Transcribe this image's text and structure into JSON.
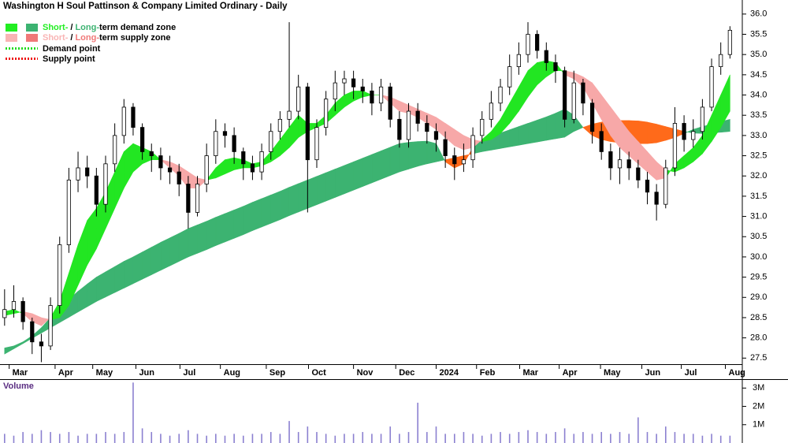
{
  "chart_data": {
    "type": "candlestick",
    "title": "Washington H Soul Pattinson & Company Limited Ordinary - Daily",
    "open": [
      28.5,
      28.7,
      28.9,
      28.4,
      27.9,
      27.8,
      28.8,
      30.3,
      31.9,
      32.2,
      32.0,
      31.3,
      32.3,
      33.0,
      33.7,
      33.2,
      32.6,
      32.5,
      32.2,
      32.1,
      31.8,
      31.1,
      31.8,
      32.5,
      33.1,
      33.0,
      32.6,
      32.3,
      32.1,
      32.6,
      33.1,
      33.4,
      33.6,
      34.2,
      32.4,
      33.2,
      33.9,
      34.3,
      34.4,
      34.2,
      34.1,
      33.8,
      34.2,
      33.4,
      32.9,
      33.6,
      33.3,
      33.1,
      32.9,
      32.5,
      32.3,
      32.4,
      33.0,
      33.4,
      33.8,
      34.2,
      34.7,
      35.0,
      35.5,
      35.1,
      34.8,
      34.6,
      33.4,
      34.3,
      33.8,
      33.1,
      32.6,
      32.2,
      32.4,
      32.2,
      31.9,
      31.6,
      31.3,
      32.2,
      33.3,
      32.9,
      33.1,
      33.7,
      34.7,
      35.0
    ],
    "high": [
      29.2,
      29.3,
      29.0,
      28.5,
      28.1,
      29.0,
      30.5,
      32.2,
      32.6,
      32.5,
      32.2,
      32.5,
      33.3,
      33.9,
      33.8,
      33.3,
      32.8,
      32.7,
      32.5,
      32.3,
      32.0,
      32.0,
      32.8,
      33.4,
      33.3,
      33.2,
      32.7,
      32.5,
      32.8,
      33.3,
      33.6,
      35.8,
      34.5,
      34.3,
      33.4,
      34.1,
      34.6,
      34.6,
      34.6,
      34.4,
      34.3,
      34.4,
      34.3,
      33.6,
      33.8,
      33.8,
      33.5,
      33.3,
      33.1,
      32.7,
      32.8,
      33.2,
      33.6,
      34.1,
      34.4,
      35.0,
      35.3,
      35.8,
      35.6,
      35.3,
      35.0,
      34.7,
      34.6,
      34.4,
      33.9,
      33.3,
      32.8,
      32.7,
      32.6,
      32.4,
      32.1,
      31.8,
      32.4,
      33.7,
      33.5,
      33.4,
      33.9,
      34.9,
      35.3,
      35.7
    ],
    "low": [
      28.3,
      28.5,
      28.2,
      27.6,
      27.4,
      27.7,
      28.6,
      30.1,
      31.6,
      31.7,
      31.0,
      31.1,
      32.1,
      32.8,
      33.0,
      32.4,
      32.1,
      31.9,
      31.8,
      31.5,
      30.7,
      31.0,
      31.6,
      32.3,
      32.7,
      32.3,
      31.9,
      31.9,
      31.9,
      32.4,
      32.9,
      33.2,
      33.4,
      31.1,
      32.2,
      33.0,
      33.6,
      34.0,
      33.9,
      33.8,
      33.5,
      33.6,
      33.2,
      32.7,
      32.7,
      33.1,
      32.8,
      32.6,
      32.2,
      31.9,
      32.1,
      32.2,
      32.8,
      33.2,
      33.6,
      34.0,
      34.5,
      34.8,
      34.9,
      34.6,
      34.3,
      33.2,
      33.3,
      33.5,
      32.8,
      32.4,
      31.9,
      31.8,
      31.9,
      31.7,
      31.3,
      30.9,
      31.2,
      32.0,
      32.6,
      32.7,
      32.9,
      33.6,
      34.5,
      34.9
    ],
    "close": [
      28.7,
      28.9,
      28.4,
      27.9,
      27.8,
      28.8,
      30.3,
      31.9,
      32.2,
      32.0,
      31.3,
      32.3,
      33.0,
      33.7,
      33.2,
      32.6,
      32.5,
      32.2,
      32.1,
      31.8,
      31.1,
      31.8,
      32.5,
      33.1,
      33.0,
      32.6,
      32.3,
      32.1,
      32.6,
      33.1,
      33.4,
      33.6,
      34.2,
      32.4,
      33.2,
      33.9,
      34.3,
      34.4,
      34.2,
      34.1,
      33.8,
      34.2,
      33.4,
      32.9,
      33.6,
      33.3,
      33.1,
      32.9,
      32.5,
      32.3,
      32.4,
      33.0,
      33.4,
      33.8,
      34.2,
      34.7,
      35.0,
      35.5,
      35.1,
      34.8,
      34.6,
      33.4,
      34.3,
      33.8,
      33.1,
      32.6,
      32.2,
      32.4,
      32.2,
      31.9,
      31.6,
      31.3,
      32.2,
      33.3,
      32.9,
      33.1,
      33.7,
      34.7,
      35.0,
      35.6
    ],
    "up_color": "#ffffff",
    "down_color": "#000000",
    "wick_color": "#000000",
    "xlim": [
      -0.5,
      80
    ],
    "xticks": [
      {
        "value": 0.5,
        "label": "Mar"
      },
      {
        "value": 5.5,
        "label": "Apr"
      },
      {
        "value": 9.6,
        "label": "May"
      },
      {
        "value": 14.3,
        "label": "Jun"
      },
      {
        "value": 19.1,
        "label": "Jul"
      },
      {
        "value": 23.5,
        "label": "Aug"
      },
      {
        "value": 28.5,
        "label": "Sep"
      },
      {
        "value": 33.1,
        "label": "Oct"
      },
      {
        "value": 38.0,
        "label": "Nov"
      },
      {
        "value": 42.6,
        "label": "Dec"
      },
      {
        "value": 47.0,
        "label": "2024"
      },
      {
        "value": 51.4,
        "label": "Feb"
      },
      {
        "value": 56.1,
        "label": "Mar"
      },
      {
        "value": 60.4,
        "label": "Apr"
      },
      {
        "value": 64.9,
        "label": "May"
      },
      {
        "value": 69.4,
        "label": "Jun"
      },
      {
        "value": 73.7,
        "label": "Jul"
      },
      {
        "value": 78.5,
        "label": "Aug"
      }
    ],
    "ylim": [
      27.35,
      36.25
    ],
    "yticks": [
      27.5,
      {
        "value": 28,
        "label": "28.0"
      },
      28.5,
      {
        "value": 29,
        "label": "29.0"
      },
      29.5,
      {
        "value": 30,
        "label": "30.0"
      },
      30.5,
      {
        "value": 31,
        "label": "31.0"
      },
      31.5,
      {
        "value": 32,
        "label": "32.0"
      },
      32.5,
      {
        "value": 33,
        "label": "33.0"
      },
      33.5,
      {
        "value": 34,
        "label": "34.0"
      },
      34.5,
      {
        "value": 35,
        "label": "35.0"
      },
      35.5,
      {
        "value": 36,
        "label": "36.0"
      }
    ],
    "grid": false,
    "long_zone": {
      "demand_color": "#3cb371",
      "supply_color": "#ff6a1a",
      "fast": [
        27.75,
        27.8,
        27.9,
        28.05,
        28.25,
        28.5,
        28.75,
        28.95,
        29.15,
        29.33,
        29.5,
        29.63,
        29.76,
        29.89,
        30.0,
        30.12,
        30.24,
        30.36,
        30.47,
        30.58,
        30.7,
        30.79,
        30.88,
        30.98,
        31.07,
        31.16,
        31.25,
        31.35,
        31.44,
        31.53,
        31.62,
        31.72,
        31.81,
        31.9,
        31.99,
        32.08,
        32.17,
        32.26,
        32.35,
        32.44,
        32.53,
        32.62,
        32.71,
        32.8,
        32.83,
        32.85,
        32.86,
        32.8,
        32.35,
        32.2,
        32.3,
        32.7,
        32.9,
        32.98,
        33.06,
        33.14,
        33.22,
        33.3,
        33.38,
        33.46,
        33.55,
        33.65,
        33.5,
        33.2,
        33.0,
        32.9,
        32.85,
        32.82,
        32.8,
        32.8,
        32.8,
        32.82,
        32.88,
        32.95,
        33.05,
        33.15,
        33.22,
        33.28,
        33.34,
        33.4
      ],
      "slow": [
        27.6,
        27.73,
        27.86,
        27.99,
        28.12,
        28.25,
        28.38,
        28.51,
        28.64,
        28.77,
        28.9,
        29.01,
        29.12,
        29.23,
        29.34,
        29.45,
        29.56,
        29.67,
        29.78,
        29.89,
        30.0,
        30.09,
        30.18,
        30.28,
        30.37,
        30.46,
        30.55,
        30.65,
        30.74,
        30.83,
        30.92,
        31.02,
        31.11,
        31.2,
        31.29,
        31.38,
        31.47,
        31.56,
        31.65,
        31.74,
        31.83,
        31.92,
        32.01,
        32.1,
        32.17,
        32.24,
        32.3,
        32.35,
        32.4,
        32.45,
        32.5,
        32.55,
        32.6,
        32.64,
        32.68,
        32.72,
        32.76,
        32.8,
        32.84,
        32.88,
        32.92,
        32.96,
        33.1,
        33.2,
        33.28,
        33.33,
        33.36,
        33.37,
        33.37,
        33.36,
        33.33,
        33.28,
        33.22,
        33.16,
        33.1,
        33.06,
        33.05,
        33.06,
        33.08,
        33.1
      ]
    },
    "short_zone": {
      "demand_color": "#22e622",
      "supply_color": "#f7a8a8",
      "fast": [
        28.65,
        28.7,
        28.6,
        28.4,
        28.3,
        28.5,
        28.9,
        29.6,
        30.3,
        30.9,
        31.2,
        31.6,
        32.1,
        32.6,
        32.8,
        32.7,
        32.6,
        32.4,
        32.2,
        32.0,
        31.7,
        31.7,
        31.9,
        32.2,
        32.4,
        32.45,
        32.4,
        32.3,
        32.35,
        32.6,
        32.9,
        33.2,
        33.5,
        33.3,
        33.3,
        33.5,
        33.8,
        34.0,
        34.1,
        34.1,
        34.0,
        34.0,
        33.8,
        33.6,
        33.55,
        33.45,
        33.3,
        33.15,
        32.95,
        32.75,
        32.65,
        32.7,
        32.9,
        33.1,
        33.4,
        33.8,
        34.2,
        34.6,
        34.8,
        34.85,
        34.8,
        34.5,
        34.4,
        34.2,
        33.8,
        33.4,
        33.0,
        32.7,
        32.5,
        32.3,
        32.1,
        31.9,
        31.95,
        32.3,
        32.5,
        32.7,
        33.0,
        33.5,
        34.0,
        34.5
      ],
      "slow": [
        28.55,
        28.6,
        28.65,
        28.6,
        28.5,
        28.45,
        28.5,
        28.8,
        29.3,
        29.8,
        30.2,
        30.7,
        31.2,
        31.7,
        32.1,
        32.3,
        32.4,
        32.4,
        32.35,
        32.25,
        32.1,
        31.95,
        31.9,
        31.95,
        32.05,
        32.15,
        32.2,
        32.2,
        32.25,
        32.35,
        32.5,
        32.7,
        32.95,
        33.1,
        33.2,
        33.3,
        33.5,
        33.7,
        33.85,
        33.95,
        34.0,
        34.0,
        33.95,
        33.85,
        33.75,
        33.65,
        33.55,
        33.45,
        33.3,
        33.15,
        33.0,
        32.9,
        32.85,
        32.9,
        33.05,
        33.3,
        33.6,
        33.95,
        34.25,
        34.45,
        34.6,
        34.6,
        34.55,
        34.45,
        34.3,
        34.0,
        33.7,
        33.4,
        33.1,
        32.85,
        32.6,
        32.35,
        32.15,
        32.1,
        32.2,
        32.35,
        32.55,
        32.85,
        33.2,
        33.6
      ]
    },
    "volume": {
      "label": "Volume",
      "color": "#8b80d0",
      "values": [
        0.5,
        0.4,
        0.6,
        0.5,
        0.7,
        0.6,
        0.5,
        0.6,
        0.4,
        0.5,
        0.5,
        0.6,
        0.5,
        0.6,
        3.3,
        0.8,
        0.6,
        0.5,
        0.4,
        0.5,
        0.7,
        0.5,
        0.4,
        0.5,
        0.4,
        0.5,
        0.4,
        0.5,
        0.5,
        0.6,
        0.5,
        1.2,
        0.6,
        0.9,
        0.6,
        0.5,
        0.4,
        0.5,
        0.5,
        0.6,
        0.5,
        0.5,
        0.9,
        0.5,
        0.6,
        2.2,
        0.6,
        0.9,
        0.5,
        0.5,
        0.6,
        0.5,
        0.4,
        0.5,
        0.6,
        0.5,
        0.6,
        0.7,
        0.6,
        0.5,
        0.6,
        0.8,
        0.5,
        0.6,
        0.5,
        0.6,
        0.5,
        0.6,
        0.5,
        1.4,
        0.6,
        0.5,
        0.9,
        0.6,
        0.5,
        0.5,
        0.4,
        0.5,
        0.4,
        0.4
      ],
      "ylim": [
        0,
        3.4
      ],
      "yticks": [
        {
          "value": 1,
          "label": "1M"
        },
        {
          "value": 2,
          "label": "2M"
        },
        {
          "value": 3,
          "label": "3M"
        }
      ]
    },
    "legend": {
      "position": "top-left",
      "demand_zone": {
        "short": "Short-",
        "sep": "/",
        "long": "Long-",
        "rest": "term demand zone",
        "colors": [
          "#22ee22",
          "#3cb371"
        ]
      },
      "supply_zone": {
        "short": "Short-",
        "sep": "/",
        "long": "Long-",
        "rest": "term supply zone",
        "colors": [
          "#f9b4b4",
          "#f07878"
        ]
      },
      "demand_point": {
        "label": "Demand point",
        "color": "#22dd22"
      },
      "supply_point": {
        "label": "Supply point",
        "color": "#ee1111"
      }
    }
  }
}
